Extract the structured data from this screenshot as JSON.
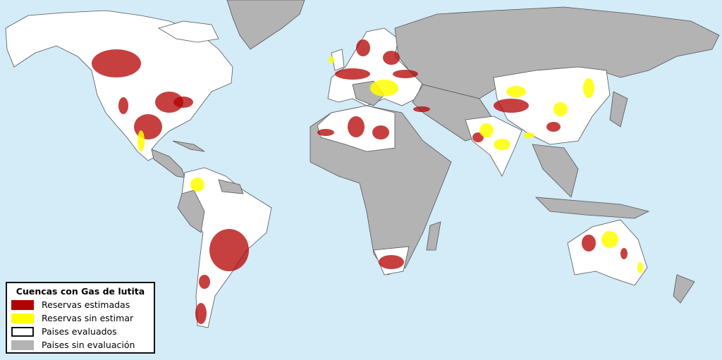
{
  "legend": {
    "title": "Cuencas con Gas de lutita",
    "items": [
      {
        "label": "Reservas estimadas",
        "color": "#b30000"
      },
      {
        "label": "Reservas sin estimar",
        "color": "#ffff00"
      },
      {
        "label": "Paises evaluados",
        "color": "#ffffff"
      },
      {
        "label": "Paises sin evaluación",
        "color": "#b3b3b3"
      }
    ]
  },
  "colors": {
    "ocean": "#d4ebf8",
    "evaluated": "#ffffff",
    "not_evaluated": "#b3b3b3"
  }
}
